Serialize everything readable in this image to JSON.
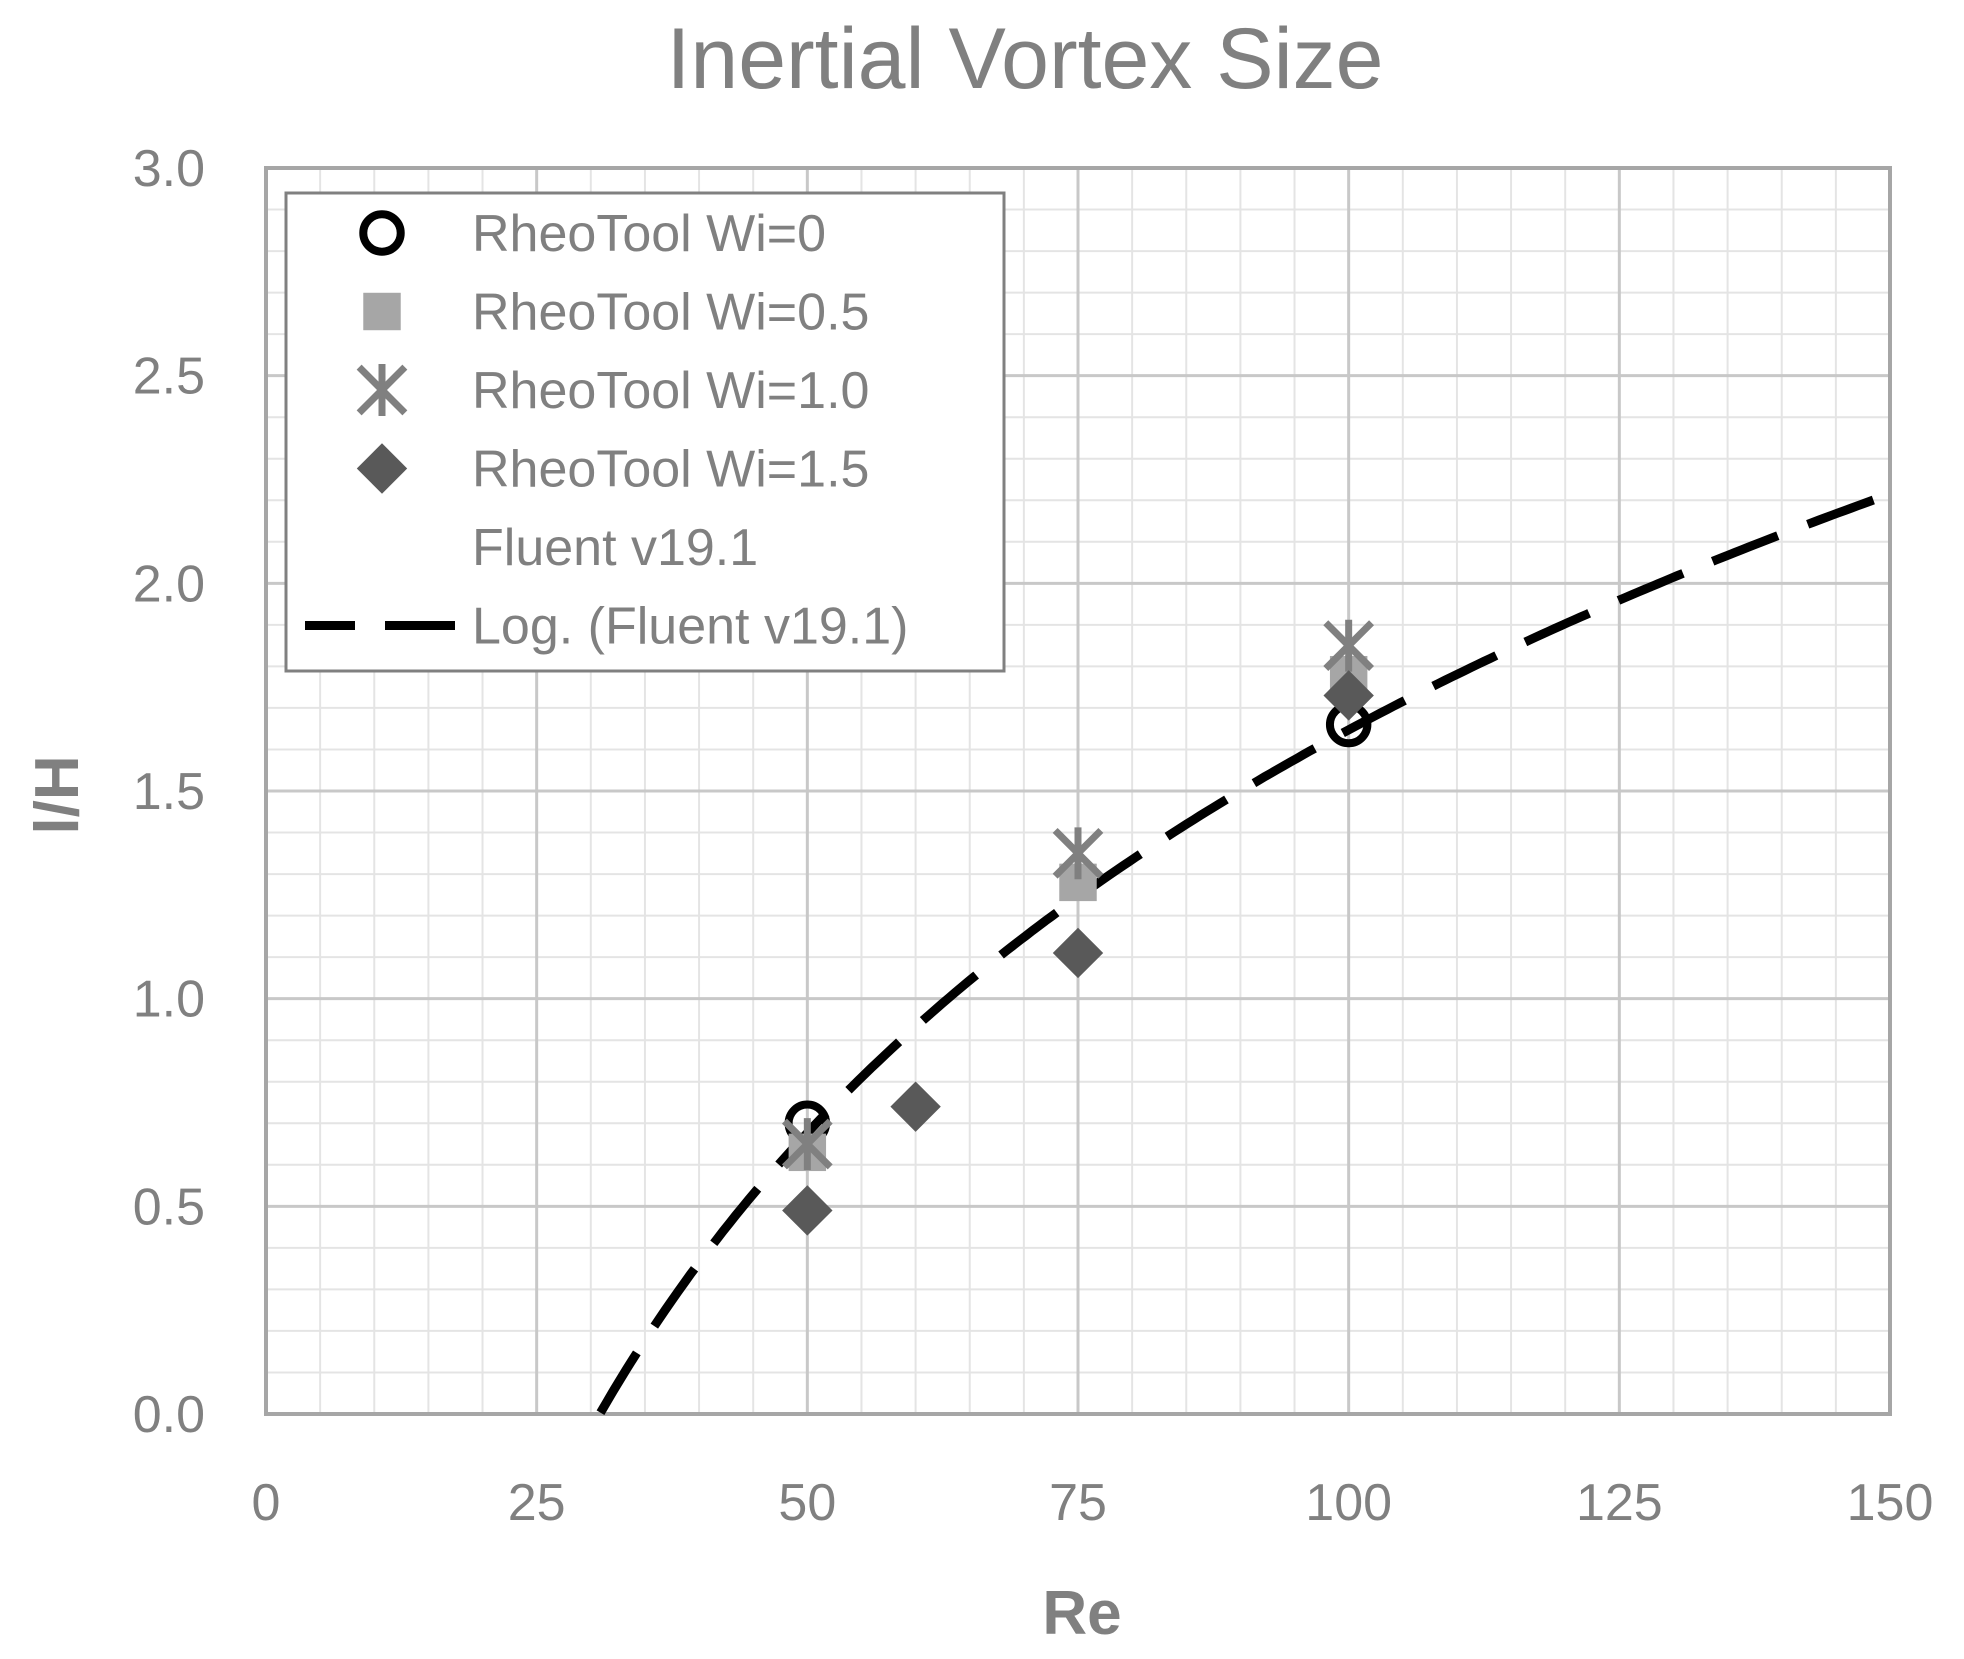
{
  "chart_data": {
    "type": "scatter",
    "title": "Inertial Vortex Size",
    "xlabel": "Re",
    "ylabel": "l/H",
    "xlim": [
      0,
      150
    ],
    "ylim": [
      0,
      3.0
    ],
    "x_ticks": [
      "0",
      "25",
      "50",
      "75",
      "100",
      "125",
      "150"
    ],
    "y_ticks": [
      "0.0",
      "0.5",
      "1.0",
      "1.5",
      "2.0",
      "2.5",
      "3.0"
    ],
    "grid": true,
    "legend_position": "top-left",
    "series": [
      {
        "name": "RheoTool Wi=0",
        "marker": "circle-open",
        "color": "#000000",
        "points": [
          {
            "x": 50,
            "y": 0.7
          },
          {
            "x": 100,
            "y": 1.66
          }
        ]
      },
      {
        "name": "RheoTool Wi=0.5",
        "marker": "square",
        "color": "#a6a6a6",
        "points": [
          {
            "x": 50,
            "y": 0.63
          },
          {
            "x": 75,
            "y": 1.28
          },
          {
            "x": 100,
            "y": 1.78
          }
        ]
      },
      {
        "name": "RheoTool Wi=1.0",
        "marker": "asterisk",
        "color": "#808080",
        "points": [
          {
            "x": 50,
            "y": 0.65
          },
          {
            "x": 75,
            "y": 1.35
          },
          {
            "x": 100,
            "y": 1.85
          }
        ]
      },
      {
        "name": "RheoTool Wi=1.5",
        "marker": "diamond",
        "color": "#595959",
        "points": [
          {
            "x": 50,
            "y": 0.49
          },
          {
            "x": 60,
            "y": 0.74
          },
          {
            "x": 75,
            "y": 1.11
          },
          {
            "x": 100,
            "y": 1.73
          }
        ]
      },
      {
        "name": "Fluent v19.1",
        "marker": "none",
        "color": "#ffffff",
        "points": []
      },
      {
        "name": "Log. (Fluent v19.1)",
        "type": "trendline-log",
        "color": "#000000",
        "dash": true,
        "coef_a": 1.4,
        "coef_b": -4.8,
        "x_range": [
          30.9,
          150
        ]
      }
    ]
  }
}
